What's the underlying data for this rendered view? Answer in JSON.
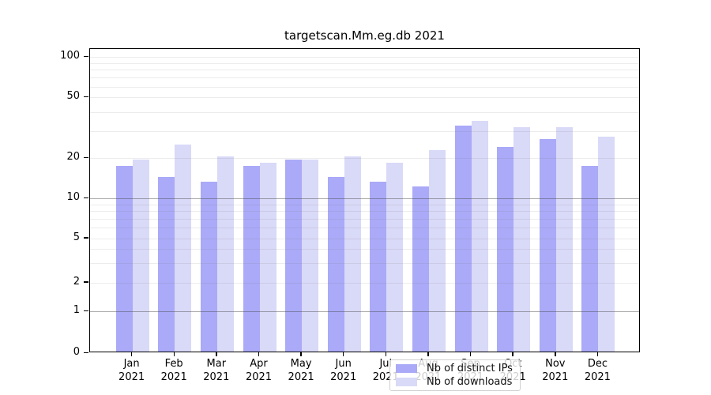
{
  "figure": {
    "title": "targetscan.Mm.eg.db 2021"
  },
  "legend": {
    "items": [
      {
        "label": "Nb of distinct IPs",
        "color": "#aaaaf8"
      },
      {
        "label": "Nb of downloads",
        "color": "#d9d9f8"
      }
    ]
  },
  "chart_data": {
    "type": "bar",
    "title": "targetscan.Mm.eg.db 2021",
    "categories": [
      "Jan 2021",
      "Feb 2021",
      "Mar 2021",
      "Apr 2021",
      "May 2021",
      "Jun 2021",
      "Jul 2021",
      "Aug 2021",
      "Sep 2021",
      "Oct 2021",
      "Nov 2021",
      "Dec 2021"
    ],
    "series": [
      {
        "name": "Nb of distinct IPs",
        "color": "#aaaaf8",
        "values": [
          17,
          14,
          13,
          17,
          19,
          14,
          13,
          12,
          32,
          23,
          26,
          17
        ]
      },
      {
        "name": "Nb of downloads",
        "color": "#d9d9f8",
        "values": [
          19,
          24,
          20,
          18,
          19,
          20,
          18,
          22,
          34,
          31,
          31,
          27
        ]
      }
    ],
    "yaxis": {
      "scale": "log-like (linear below 1)",
      "ticks": [
        0,
        1,
        2,
        5,
        10,
        20,
        50,
        100
      ],
      "range": [
        0,
        100
      ]
    },
    "xlabel": "",
    "ylabel": "",
    "grid": "on",
    "legend_position": "inside-bottom-center"
  }
}
